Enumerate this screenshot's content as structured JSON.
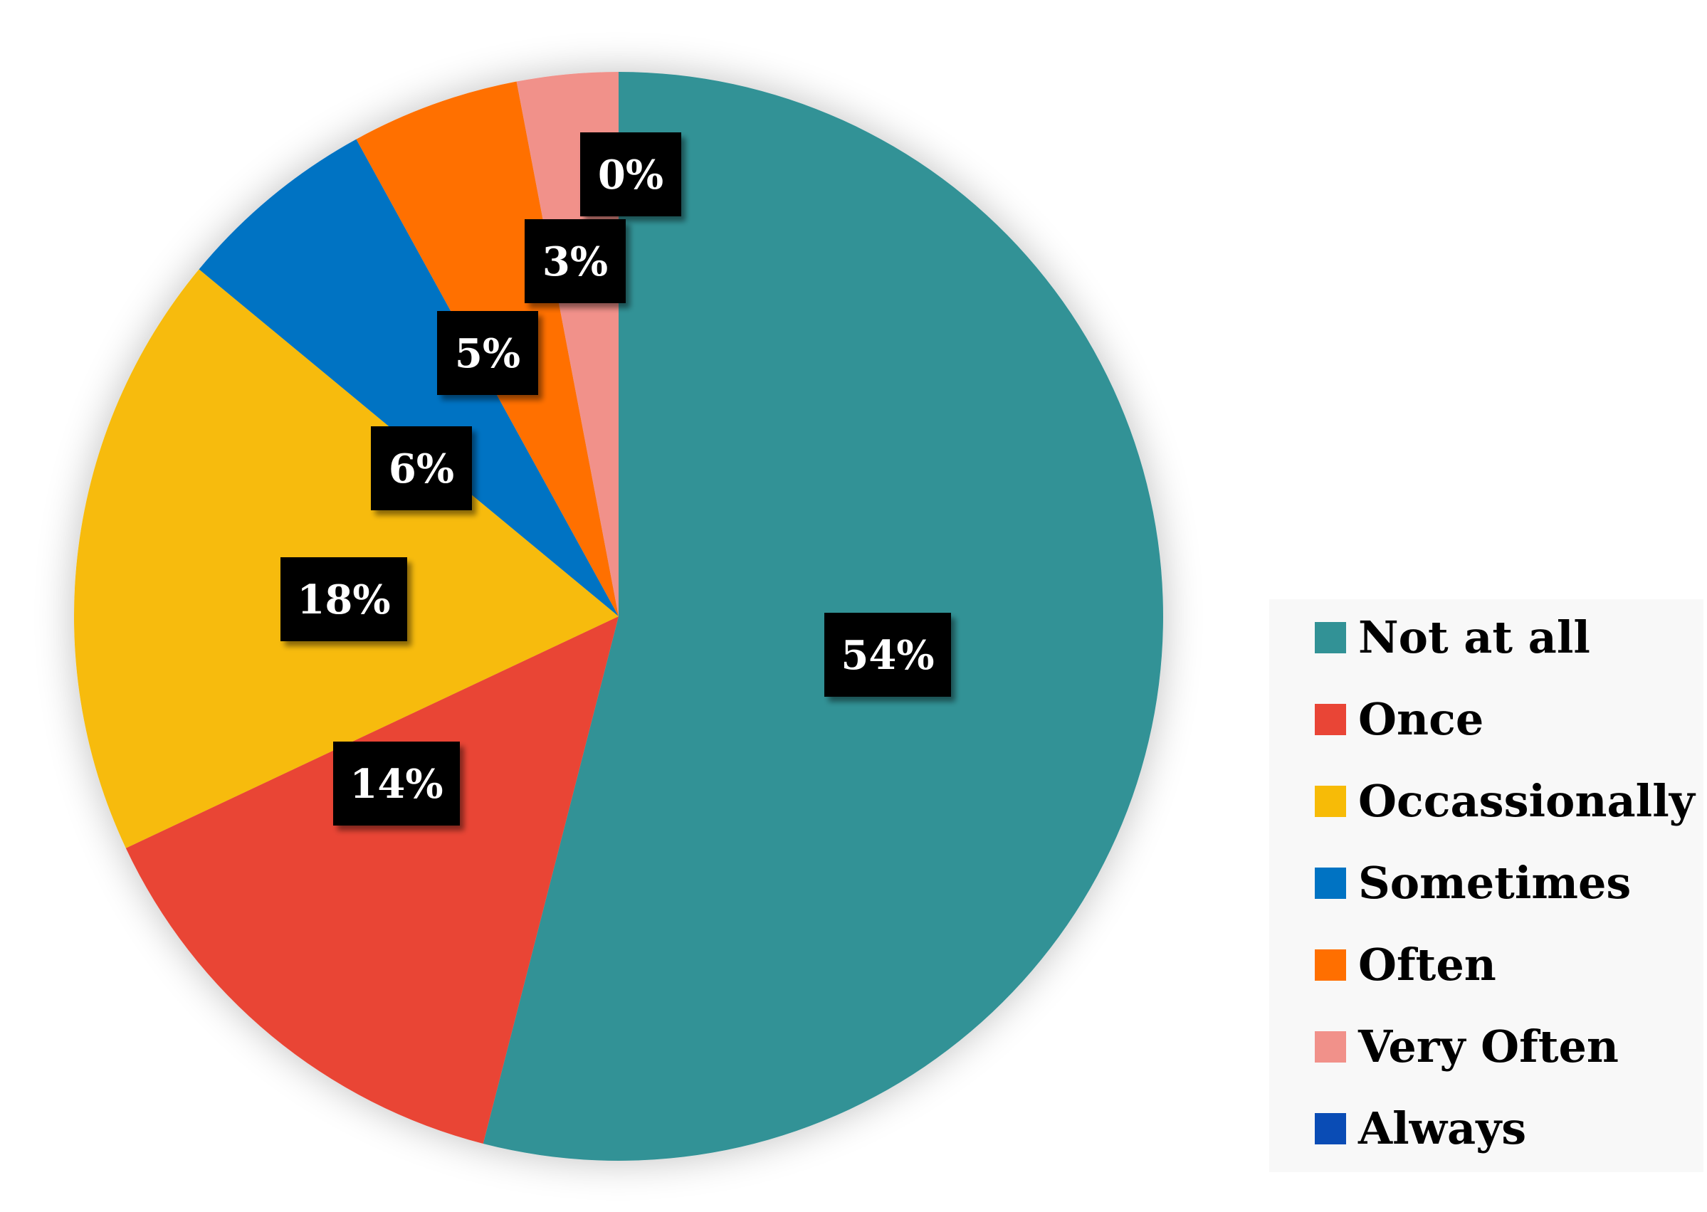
{
  "chart_data": {
    "type": "pie",
    "title": "",
    "slices": [
      {
        "label": "Not at all",
        "value": 54,
        "color": "#329296",
        "display": "54%"
      },
      {
        "label": "Once",
        "value": 14,
        "color": "#E94536",
        "display": "14%"
      },
      {
        "label": "Occassionally",
        "value": 18,
        "color": "#F7BB07",
        "display": "18%"
      },
      {
        "label": "Sometimes",
        "value": 6,
        "color": "#0073C3",
        "display": "6%"
      },
      {
        "label": "Often",
        "value": 5,
        "color": "#FF6F00",
        "display": "5%"
      },
      {
        "label": "Very Often",
        "value": 3,
        "color": "#F1918A",
        "display": "3%"
      },
      {
        "label": "Always",
        "value": 0,
        "color": "#0A4CB5",
        "display": "0%"
      }
    ],
    "legend_position": "right",
    "start_angle_deg": 0,
    "direction": "clockwise"
  }
}
